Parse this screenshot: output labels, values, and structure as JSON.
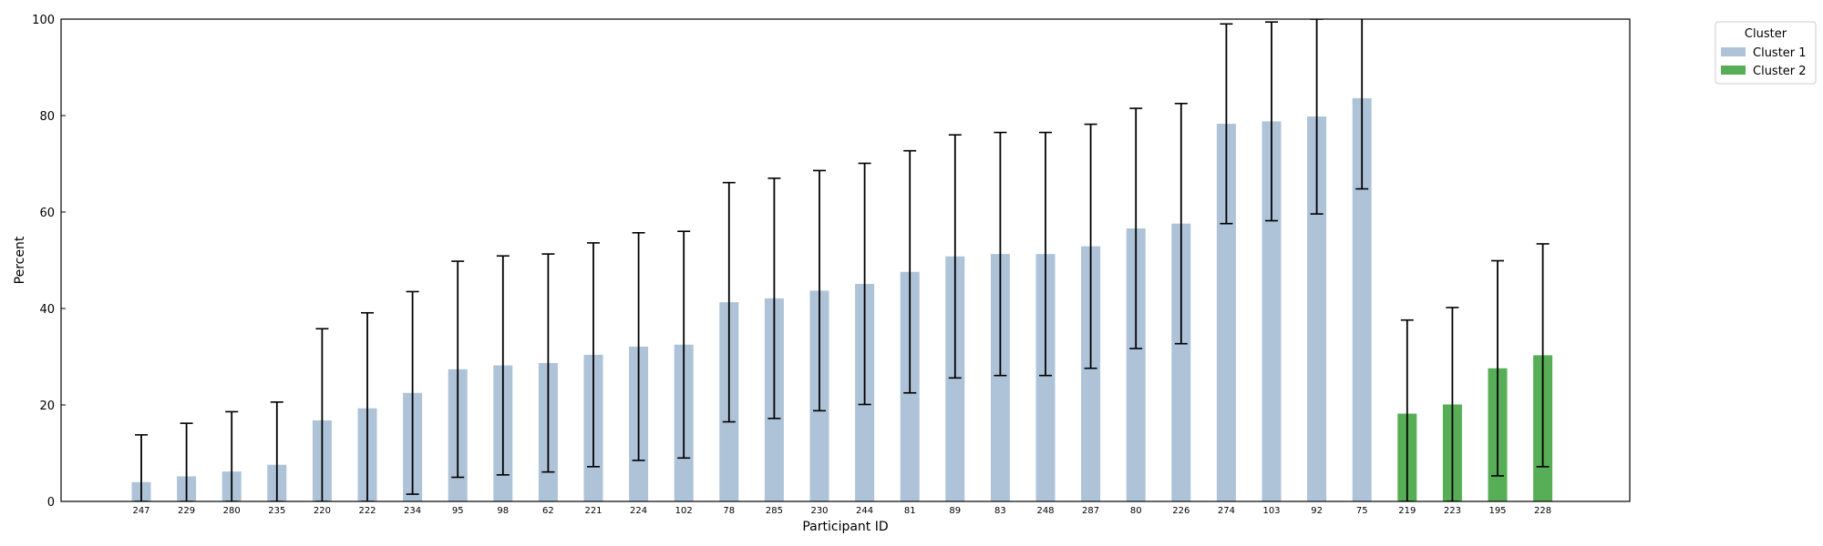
{
  "chart_data": {
    "type": "bar",
    "xlabel": "Participant ID",
    "ylabel": "Percent",
    "ylim": [
      0,
      100
    ],
    "yticks": [
      "0",
      "20",
      "40",
      "60",
      "80",
      "100"
    ],
    "grid": false,
    "legend": {
      "title": "Cluster",
      "placement": "outside-top-right",
      "entries": [
        {
          "label": "Cluster 1",
          "color": "#aec3d8"
        },
        {
          "label": "Cluster 2",
          "color": "#58ad57"
        }
      ]
    },
    "categories": [
      "247",
      "229",
      "280",
      "235",
      "220",
      "222",
      "234",
      "95",
      "98",
      "62",
      "221",
      "224",
      "102",
      "78",
      "285",
      "230",
      "244",
      "81",
      "89",
      "83",
      "248",
      "287",
      "80",
      "226",
      "274",
      "103",
      "92",
      "75",
      "219",
      "223",
      "195",
      "228"
    ],
    "values": [
      4.0,
      5.2,
      6.2,
      7.6,
      16.8,
      19.3,
      22.5,
      27.4,
      28.2,
      28.7,
      30.4,
      32.1,
      32.5,
      41.3,
      42.1,
      43.7,
      45.1,
      47.6,
      50.8,
      51.3,
      51.3,
      52.9,
      56.6,
      57.6,
      78.3,
      78.8,
      79.8,
      83.6,
      18.2,
      20.1,
      27.6,
      30.3
    ],
    "error": [
      9.8,
      11.0,
      12.4,
      13.0,
      19.0,
      19.8,
      21.0,
      22.4,
      22.7,
      22.6,
      23.2,
      23.6,
      23.5,
      24.8,
      24.9,
      24.9,
      25.0,
      25.1,
      25.2,
      25.2,
      25.2,
      25.3,
      24.9,
      24.9,
      20.7,
      20.6,
      20.2,
      18.8,
      19.4,
      20.1,
      22.3,
      23.1
    ],
    "cluster": [
      1,
      1,
      1,
      1,
      1,
      1,
      1,
      1,
      1,
      1,
      1,
      1,
      1,
      1,
      1,
      1,
      1,
      1,
      1,
      1,
      1,
      1,
      1,
      1,
      1,
      1,
      1,
      1,
      2,
      2,
      2,
      2
    ]
  }
}
